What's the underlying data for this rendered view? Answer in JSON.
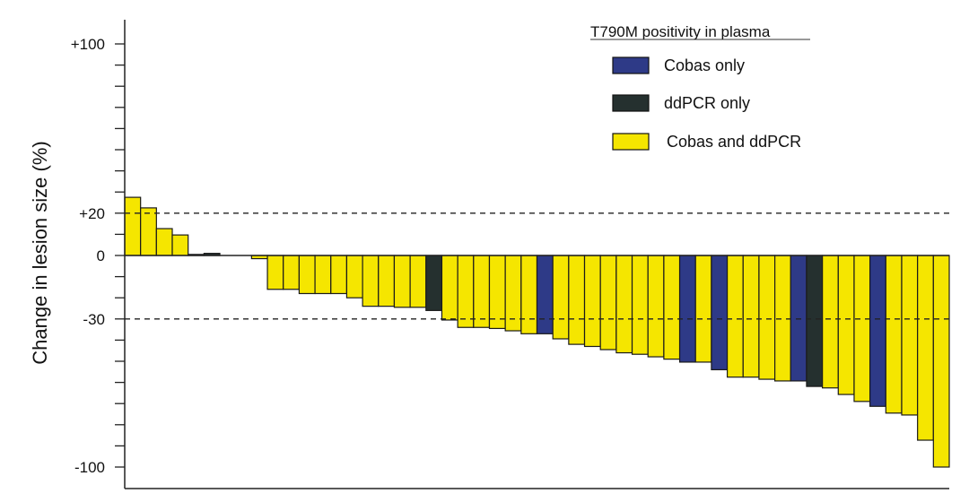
{
  "chart_data": {
    "type": "bar",
    "subtype": "waterfall",
    "title": "",
    "xlabel": "",
    "ylabel": "Change in lesion size (%)",
    "ylim": [
      -100,
      100
    ],
    "yticks": [
      -100,
      -90,
      -80,
      -70,
      -60,
      -50,
      -40,
      -30,
      -20,
      -10,
      0,
      10,
      20,
      30,
      40,
      50,
      60,
      70,
      80,
      90,
      100
    ],
    "ytick_labels": [
      {
        "value": 100,
        "label": "+100"
      },
      {
        "value": 20,
        "label": "+20"
      },
      {
        "value": 0,
        "label": "0"
      },
      {
        "value": -30,
        "label": "-30"
      },
      {
        "value": -100,
        "label": "-100"
      }
    ],
    "reference_lines": [
      20,
      -30
    ],
    "legend": {
      "title": "T790M positivity in plasma",
      "placement": "top-right",
      "entries": [
        {
          "key": "B",
          "label": "Cobas only",
          "color": "#2E3A87"
        },
        {
          "key": "D",
          "label": "ddPCR only",
          "color": "#25302F"
        },
        {
          "key": "Y",
          "label": "Cobas and ddPCR",
          "color": "#F5E600"
        }
      ]
    },
    "values": [
      27.5,
      22.5,
      12.7,
      9.7,
      0.5,
      1,
      0,
      0,
      -1.5,
      -16,
      -16,
      -18,
      -18,
      -18,
      -20,
      -24,
      -24,
      -24.5,
      -24.5,
      -26,
      -30.5,
      -34,
      -34,
      -34.5,
      -35.6,
      -37,
      -37,
      -39.4,
      -42,
      -43,
      -44.5,
      -46,
      -46.7,
      -47.9,
      -49,
      -50.4,
      -50.4,
      -54,
      -57.5,
      -57.5,
      -58.5,
      -59.3,
      -59.3,
      -61.9,
      -62.6,
      -65.7,
      -69,
      -71.3,
      -74.5,
      -75.4,
      -87.3,
      -100
    ],
    "groups": [
      "Y",
      "Y",
      "Y",
      "Y",
      "Y",
      "D",
      "Y",
      "Y",
      "Y",
      "Y",
      "Y",
      "Y",
      "Y",
      "Y",
      "Y",
      "Y",
      "Y",
      "Y",
      "Y",
      "D",
      "Y",
      "Y",
      "Y",
      "Y",
      "Y",
      "Y",
      "B",
      "Y",
      "Y",
      "Y",
      "Y",
      "Y",
      "Y",
      "Y",
      "Y",
      "B",
      "Y",
      "B",
      "Y",
      "Y",
      "Y",
      "Y",
      "B",
      "D",
      "Y",
      "Y",
      "Y",
      "B",
      "Y",
      "Y",
      "Y",
      "Y"
    ]
  }
}
